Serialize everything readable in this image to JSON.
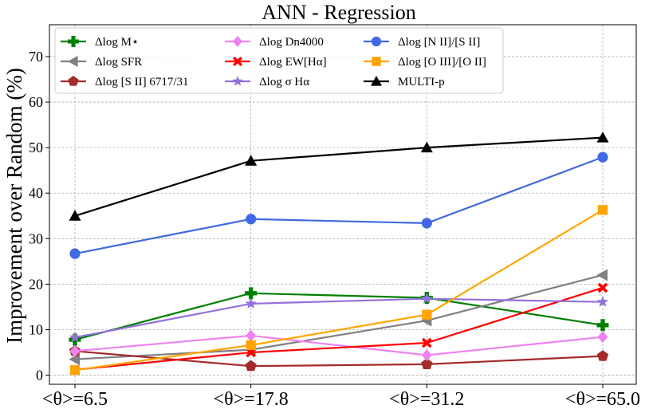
{
  "chart_data": {
    "type": "line",
    "title": "ANN - Regression",
    "xlabel": "",
    "ylabel": "Improvement over Random (%)",
    "categories": [
      "<θ>=6.5",
      "<θ>=17.8",
      "<θ>=31.2",
      "<θ>=65.0"
    ],
    "ylim": [
      -2,
      77
    ],
    "yticks": [
      0,
      10,
      20,
      30,
      40,
      50,
      60,
      70
    ],
    "grid": true,
    "legend_position": "top-left",
    "legend_columns": 3,
    "series": [
      {
        "name": "Δlog M⋆",
        "color": "#008000",
        "marker": "plus",
        "values": [
          7.8,
          18.0,
          17.0,
          11.0
        ]
      },
      {
        "name": "Δlog SFR",
        "color": "#808080",
        "marker": "triangle-left",
        "values": [
          3.5,
          5.6,
          12.0,
          22.0
        ]
      },
      {
        "name": "Δlog [S II] 6717/31",
        "color": "#a52a2a",
        "marker": "pentagon",
        "values": [
          5.3,
          2.0,
          2.4,
          4.2
        ]
      },
      {
        "name": "Δlog Dn4000",
        "color": "#ee82ee",
        "marker": "diamond",
        "values": [
          5.3,
          8.7,
          4.4,
          8.4
        ]
      },
      {
        "name": "Δlog EW[Hα]",
        "color": "#ff0000",
        "marker": "x",
        "values": [
          1.2,
          5.0,
          7.1,
          19.2
        ]
      },
      {
        "name": "Δlog σ Hα",
        "color": "#9370db",
        "marker": "star",
        "values": [
          8.3,
          15.7,
          16.8,
          16.1
        ]
      },
      {
        "name": "Δlog [N II]/[S II]",
        "color": "#4169e1",
        "marker": "circle",
        "values": [
          26.7,
          34.3,
          33.4,
          47.9
        ]
      },
      {
        "name": "Δlog [O III]/[O II]",
        "color": "#ffa500",
        "marker": "square",
        "values": [
          1.1,
          6.6,
          13.3,
          36.3
        ]
      },
      {
        "name": "MULTI-p",
        "color": "#000000",
        "marker": "triangle-up",
        "values": [
          35.0,
          47.1,
          50.0,
          52.2
        ]
      }
    ]
  }
}
